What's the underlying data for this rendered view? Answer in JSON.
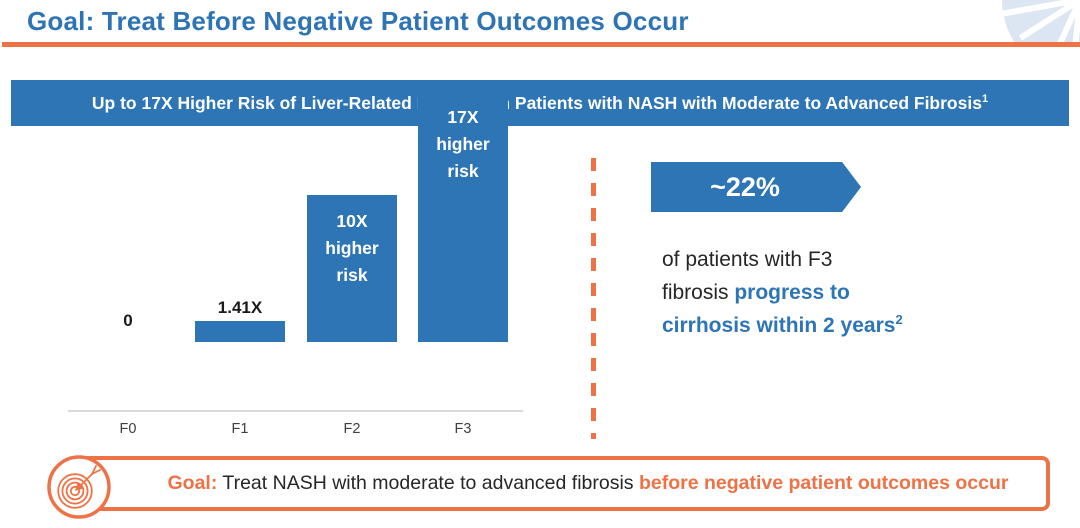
{
  "slide": {
    "title": "Goal: Treat Before Negative Patient Outcomes Occur",
    "banner": {
      "text": "Up to 17X Higher Risk of Liver-Related Mortality in Patients with NASH with Moderate to Advanced Fibrosis",
      "superscript": "1"
    },
    "callout": {
      "arrow_label": "~22%",
      "text_plain": "of patients with F3 fibrosis ",
      "text_emphasis": "progress to cirrhosis within 2 years",
      "superscript": "2"
    },
    "goal_banner": {
      "prefix": "Goal:",
      "text_plain": " Treat NASH with moderate to advanced fibrosis ",
      "text_emphasis": "before negative patient outcomes occur"
    },
    "colors": {
      "accent_blue": "#2E75B6",
      "title_blue": "#2E74B5",
      "accent_orange": "#ED7346",
      "axis_gray": "#D9D9D9",
      "corner_fan_blue": "#DCE6F2"
    }
  },
  "chart_data": {
    "type": "bar",
    "title": "Up to 17X Higher Risk of Liver-Related Mortality in Patients with NASH with Moderate to Advanced Fibrosis",
    "categories": [
      "F0",
      "F1",
      "F2",
      "F3"
    ],
    "values": [
      0,
      1.41,
      10,
      17
    ],
    "bar_labels": [
      "0",
      "1.41X",
      "10X higher risk",
      "17X higher risk"
    ],
    "label_positions": [
      "outside",
      "outside",
      "inside",
      "inside"
    ],
    "xlabel": "",
    "ylabel": "",
    "ylim": [
      0,
      17.5
    ],
    "grid": false,
    "legend": false,
    "bar_color": "#2E75B6"
  }
}
